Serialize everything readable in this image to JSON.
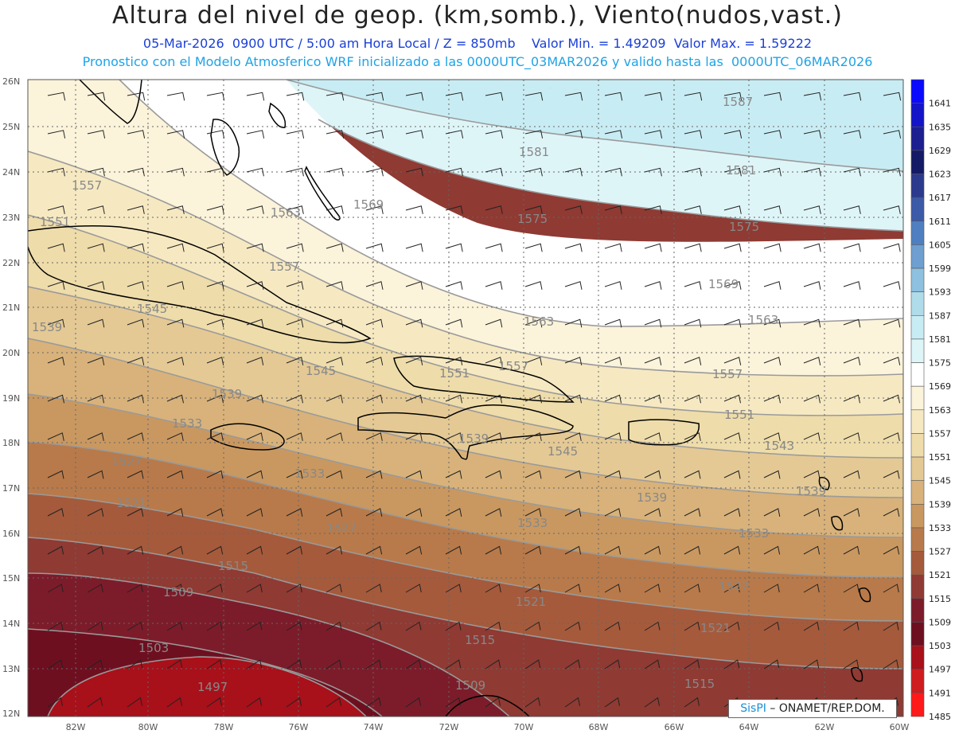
{
  "header": {
    "title": "Altura del nivel de geop. (km,somb.), Viento(nudos,vast.)",
    "subtitle_line1": "05-Mar-2026  0900 UTC / 5:00 am Hora Local / Z = 850mb    Valor Min. = 1.49209  Valor Max. = 1.59222",
    "subtitle_line2": "Pronostico con el Modelo Atmosferico WRF inicializado a las 0000UTC_03MAR2026 y valido hasta las  0000UTC_06MAR2026"
  },
  "axes": {
    "lat_labels": [
      "26N",
      "25N",
      "24N",
      "23N",
      "22N",
      "21N",
      "20N",
      "19N",
      "18N",
      "17N",
      "16N",
      "15N",
      "14N",
      "13N",
      "12N"
    ],
    "lon_labels": [
      "82W",
      "80W",
      "78W",
      "76W",
      "74W",
      "72W",
      "70W",
      "68W",
      "66W",
      "64W",
      "62W",
      "60W"
    ]
  },
  "colorbar": {
    "labels": [
      "1641",
      "1635",
      "1629",
      "1623",
      "1617",
      "1611",
      "1605",
      "1599",
      "1593",
      "1587",
      "1581",
      "1575",
      "1569",
      "1563",
      "1557",
      "1551",
      "1545",
      "1539",
      "1533",
      "1527",
      "1521",
      "1515",
      "1509",
      "1503",
      "1497",
      "1491",
      "1485"
    ],
    "colors": [
      "#0a0aff",
      "#1414c8",
      "#1c1f90",
      "#151a66",
      "#2b3a8c",
      "#3b5aa8",
      "#4f7fc0",
      "#6e9fd0",
      "#8ec0df",
      "#b0dcea",
      "#c8ecf3",
      "#def5f8",
      "#ffffff",
      "#fbf3da",
      "#f6e9c2",
      "#eedcaa",
      "#e4c995",
      "#d8b27a",
      "#c99860",
      "#b87a4a",
      "#a55a3c",
      "#8f3a33",
      "#7c1c2a",
      "#6e0f20",
      "#a8101a",
      "#cf1d1f",
      "#ff1a1a"
    ]
  },
  "contour_labels": [
    {
      "text": "1587"
    },
    {
      "text": "1581"
    },
    {
      "text": "1581"
    },
    {
      "text": "1575"
    },
    {
      "text": "1575"
    },
    {
      "text": "1569"
    },
    {
      "text": "1569"
    },
    {
      "text": "1563"
    },
    {
      "text": "1563"
    },
    {
      "text": "1563"
    },
    {
      "text": "1557"
    },
    {
      "text": "1557"
    },
    {
      "text": "1557"
    },
    {
      "text": "1557"
    },
    {
      "text": "1551"
    },
    {
      "text": "1551"
    },
    {
      "text": "1551"
    },
    {
      "text": "1545"
    },
    {
      "text": "1545"
    },
    {
      "text": "1545"
    },
    {
      "text": "1543"
    },
    {
      "text": "1539"
    },
    {
      "text": "1539"
    },
    {
      "text": "1539"
    },
    {
      "text": "1539"
    },
    {
      "text": "1539"
    },
    {
      "text": "1533"
    },
    {
      "text": "1533"
    },
    {
      "text": "1533"
    },
    {
      "text": "1533"
    },
    {
      "text": "1527"
    },
    {
      "text": "1527"
    },
    {
      "text": "1527"
    },
    {
      "text": "1521"
    },
    {
      "text": "1521"
    },
    {
      "text": "1521"
    },
    {
      "text": "1515"
    },
    {
      "text": "1515"
    },
    {
      "text": "1515"
    },
    {
      "text": "1509"
    },
    {
      "text": "1509"
    },
    {
      "text": "1503"
    },
    {
      "text": "1497"
    }
  ],
  "credit": {
    "brand": "SisPI",
    "text": "– ONAMET/REP.DOM."
  }
}
